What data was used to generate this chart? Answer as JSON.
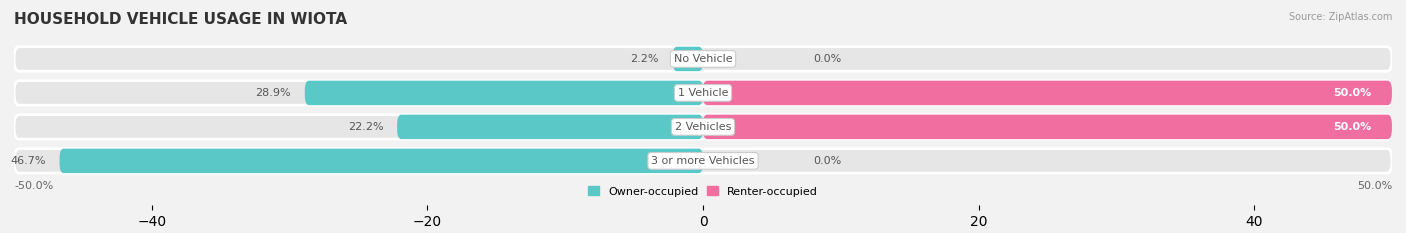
{
  "title": "HOUSEHOLD VEHICLE USAGE IN WIOTA",
  "source": "Source: ZipAtlas.com",
  "categories": [
    "No Vehicle",
    "1 Vehicle",
    "2 Vehicles",
    "3 or more Vehicles"
  ],
  "owner_values": [
    2.2,
    28.9,
    22.2,
    46.7
  ],
  "renter_values": [
    0.0,
    50.0,
    50.0,
    0.0
  ],
  "owner_color": "#5BC8C8",
  "renter_color": "#F06FA0",
  "background_color": "#f2f2f2",
  "bar_bg_color": "#e6e6e6",
  "bar_sep_color": "#ffffff",
  "xlim": [
    -50,
    50
  ],
  "xtick_left": "-50.0%",
  "xtick_right": "50.0%",
  "legend_owner": "Owner-occupied",
  "legend_renter": "Renter-occupied",
  "bar_height": 0.72,
  "title_fontsize": 11,
  "label_fontsize": 8,
  "category_fontsize": 8,
  "axis_fontsize": 8,
  "legend_fontsize": 8
}
